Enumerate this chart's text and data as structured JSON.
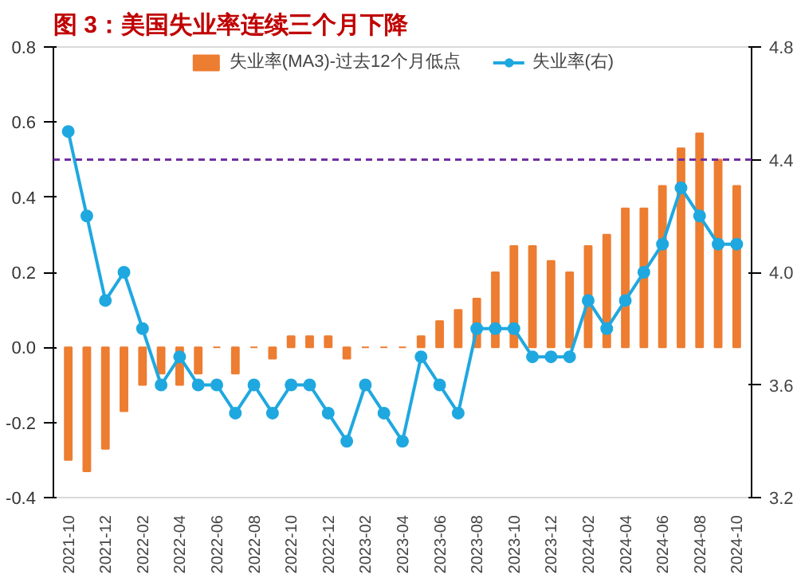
{
  "chart_data": {
    "type": "bar",
    "title": "图 3：美国失业率连续三个月下降",
    "categories": [
      "2021-10",
      null,
      "2021-12",
      null,
      "2022-02",
      null,
      "2022-04",
      null,
      "2022-06",
      null,
      "2022-08",
      null,
      "2022-10",
      null,
      "2022-12",
      null,
      "2023-02",
      null,
      "2023-04",
      null,
      "2023-06",
      null,
      "2023-08",
      null,
      "2023-10",
      null,
      "2023-12",
      null,
      "2024-02",
      null,
      "2024-04",
      null,
      "2024-06",
      null,
      "2024-08",
      null,
      "2024-10"
    ],
    "series": [
      {
        "name": "失业率(MA3)-过去12个月低点",
        "color": "#ed7d31",
        "values": [
          -0.3,
          -0.33,
          -0.27,
          -0.17,
          -0.1,
          -0.07,
          -0.1,
          -0.07,
          0,
          -0.07,
          0,
          -0.03,
          0.03,
          0.03,
          0.03,
          -0.03,
          0,
          0,
          0,
          0.03,
          0.07,
          0.1,
          0.13,
          0.2,
          0.27,
          0.27,
          0.23,
          0.2,
          0.27,
          0.3,
          0.37,
          0.37,
          0.43,
          0.53,
          0.57,
          0.5,
          0.43
        ]
      },
      {
        "name": "失业率(右)",
        "type": "line",
        "axis": "y2",
        "color": "#1fa8e0",
        "marker": "circle",
        "values": [
          4.5,
          4.2,
          3.9,
          4.0,
          3.8,
          3.6,
          3.7,
          3.6,
          3.6,
          3.5,
          3.6,
          3.5,
          3.6,
          3.6,
          3.5,
          3.4,
          3.6,
          3.5,
          3.4,
          3.7,
          3.6,
          3.5,
          3.8,
          3.8,
          3.8,
          3.7,
          3.7,
          3.7,
          3.9,
          3.8,
          3.9,
          4.0,
          4.1,
          4.3,
          4.2,
          4.1,
          4.1
        ]
      }
    ],
    "ylim": [
      -0.4,
      0.8
    ],
    "yticks": [
      {
        "value": -0.4,
        "label": "-0.4"
      },
      {
        "value": -0.2,
        "label": "-0.2"
      },
      {
        "value": 0,
        "label": "0.0"
      },
      0.2,
      0.4,
      0.6,
      0.8
    ],
    "y2lim": [
      3.2,
      4.8
    ],
    "y2ticks": [
      3.2,
      3.6,
      {
        "value": 4,
        "label": "4.0"
      },
      4.4,
      4.8
    ],
    "ref_lines": [
      {
        "axis": "y",
        "value": 0.5,
        "color": "#7030a0",
        "line_style": "dashed"
      }
    ],
    "legend": "top",
    "grid": false
  }
}
